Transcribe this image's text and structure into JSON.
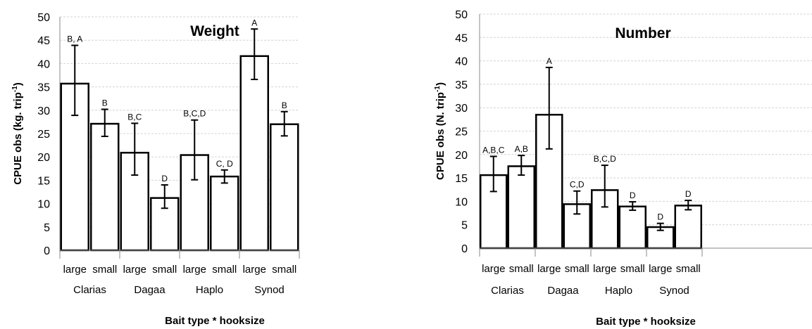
{
  "chart_data": [
    {
      "type": "bar",
      "title": "Weight",
      "xlabel": "Bait type * hooksize",
      "ylabel": "CPUE obs (kg. trip-1)",
      "ylabel_main": "CPUE obs (kg. trip",
      "ylabel_sup": "-1",
      "ylabel_close": ")",
      "ylim": [
        0,
        50
      ],
      "yticks": [
        "0",
        "5",
        "10",
        "15",
        "20",
        "25",
        "30",
        "35",
        "40",
        "45",
        "50"
      ],
      "categories": [
        "large",
        "small",
        "large",
        "small",
        "large",
        "small",
        "large",
        "small"
      ],
      "groups": [
        "Clarias",
        "Dagaa",
        "Haplo",
        "Synod"
      ],
      "values": [
        35.7,
        27.1,
        20.9,
        11.2,
        20.4,
        15.8,
        41.6,
        27.0
      ],
      "err_low": [
        28.9,
        24.4,
        16.1,
        9.0,
        15.1,
        14.4,
        36.6,
        24.5
      ],
      "err_high": [
        43.9,
        30.2,
        27.2,
        14.0,
        27.9,
        17.2,
        47.4,
        29.7
      ],
      "sig_labels": [
        "B, A",
        "B",
        "B,C",
        "D",
        "B,C,D",
        "C, D",
        "A",
        "B"
      ],
      "grid": true
    },
    {
      "type": "bar",
      "title": "Number",
      "xlabel": "Bait type * hooksize",
      "ylabel": "CPUE obs (N. trip-1)",
      "ylabel_main": "CPUE obs (N. trip",
      "ylabel_sup": "-1",
      "ylabel_close": ")",
      "ylim": [
        0,
        50
      ],
      "yticks": [
        "0",
        "5",
        "10",
        "15",
        "20",
        "25",
        "30",
        "35",
        "40",
        "45",
        "50"
      ],
      "categories": [
        "large",
        "small",
        "large",
        "small",
        "large",
        "small",
        "large",
        "small"
      ],
      "groups": [
        "Clarias",
        "Dagaa",
        "Haplo",
        "Synod"
      ],
      "values": [
        15.6,
        17.5,
        28.5,
        9.4,
        12.4,
        8.9,
        4.5,
        9.1
      ],
      "err_low": [
        12.1,
        15.6,
        21.2,
        7.3,
        8.8,
        8.1,
        3.8,
        8.2
      ],
      "err_high": [
        19.6,
        19.8,
        38.6,
        12.2,
        17.7,
        9.9,
        5.3,
        10.2
      ],
      "sig_labels": [
        "A,B,C",
        "A,B",
        "A",
        "C,D",
        "B,C,D",
        "D",
        "D",
        "D"
      ],
      "grid": true
    }
  ]
}
